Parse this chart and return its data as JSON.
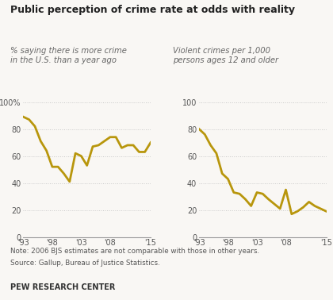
{
  "title": "Public perception of crime rate at odds with reality",
  "subtitle1": "% saying there is more crime\nin the U.S. than a year ago",
  "subtitle2": "Violent crimes per 1,000\npersons ages 12 and older",
  "note": "Note: 2006 BJS estimates are not comparable with those in other years.",
  "source": "Source: Gallup, Bureau of Justice Statistics.",
  "branding": "PEW RESEARCH CENTER",
  "line_color": "#B8960C",
  "bg_color": "#f9f7f4",
  "grid_color": "#c8c8c8",
  "graph1_x": [
    1993,
    1994,
    1995,
    1996,
    1997,
    1998,
    1999,
    2000,
    2001,
    2002,
    2003,
    2004,
    2005,
    2006,
    2007,
    2008,
    2009,
    2010,
    2011,
    2012,
    2013,
    2014,
    2015
  ],
  "graph1_y": [
    89,
    87,
    82,
    71,
    64,
    52,
    52,
    47,
    41,
    62,
    60,
    53,
    67,
    68,
    71,
    74,
    74,
    66,
    68,
    68,
    63,
    63,
    70
  ],
  "graph2_x": [
    1993,
    1994,
    1995,
    1996,
    1997,
    1998,
    1999,
    2000,
    2001,
    2002,
    2003,
    2004,
    2005,
    2007,
    2008,
    2009,
    2010,
    2011,
    2012,
    2013,
    2014,
    2015
  ],
  "graph2_y": [
    80,
    76,
    68,
    62,
    47,
    43,
    33,
    32,
    28,
    23,
    33,
    32,
    28,
    21,
    35,
    17,
    19,
    22,
    26,
    23,
    21,
    19
  ],
  "xtick_labels": [
    "'93",
    "'98",
    "'03",
    "'08",
    "'15"
  ],
  "xtick_positions": [
    1993,
    1998,
    2003,
    2008,
    2015
  ],
  "ylim": [
    0,
    100
  ],
  "yticks": [
    0,
    20,
    40,
    60,
    80,
    100
  ],
  "ytick_labels1": [
    "0",
    "20",
    "40",
    "60",
    "80",
    "100%"
  ],
  "ytick_labels2": [
    "0",
    "20",
    "40",
    "60",
    "80",
    "100"
  ]
}
